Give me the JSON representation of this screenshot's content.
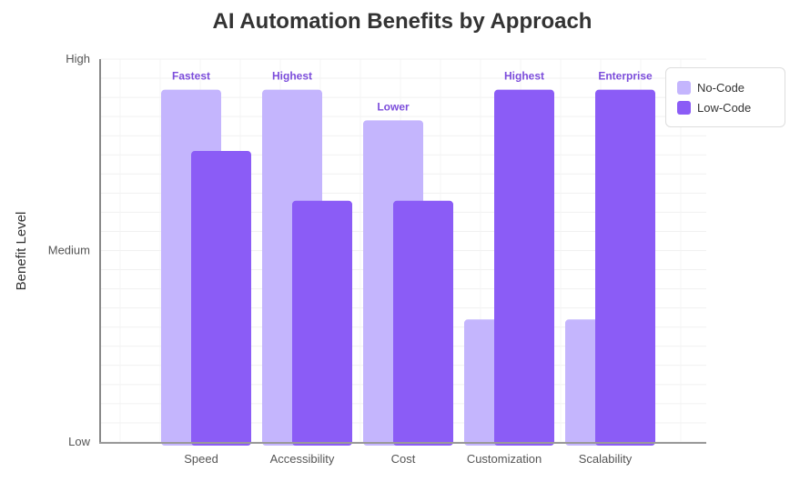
{
  "chart_data": {
    "type": "bar",
    "title": "AI Automation Benefits by Approach",
    "xlabel": "",
    "ylabel": "Benefit Level",
    "categories": [
      "Speed",
      "Accessibility",
      "Cost",
      "Customization",
      "Scalability"
    ],
    "y_tick_labels": [
      {
        "value": 0,
        "label": "Low"
      },
      {
        "value": 5,
        "label": "Medium"
      },
      {
        "value": 10,
        "label": "High"
      }
    ],
    "ylim": [
      0,
      10
    ],
    "grid": true,
    "legend_position": "top-right",
    "series": [
      {
        "name": "No-Code",
        "color": "#c4b5fd",
        "values": [
          9.2,
          9.2,
          8.4,
          3.2,
          3.2
        ],
        "labels": [
          "Fastest",
          "Highest",
          "Lower",
          "",
          ""
        ]
      },
      {
        "name": "Low-Code",
        "color": "#8b5cf6",
        "values": [
          7.6,
          6.3,
          6.3,
          9.2,
          9.2
        ],
        "labels": [
          "",
          "",
          "",
          "Highest",
          "Enterprise"
        ]
      }
    ],
    "label_color": "#7c4ddb"
  }
}
